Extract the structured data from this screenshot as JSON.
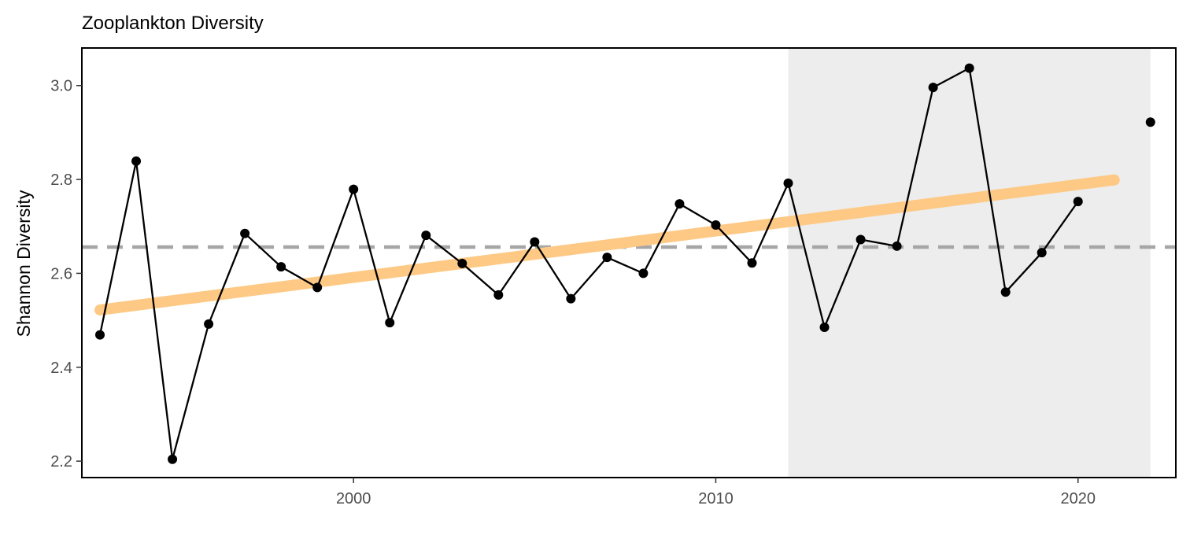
{
  "chart_data": {
    "type": "line",
    "title": "Zooplankton Diversity",
    "xlabel": "",
    "ylabel": "Shannon Diversity",
    "xlim": [
      1992.5,
      2022.7
    ],
    "ylim": [
      2.165,
      3.08
    ],
    "x_ticks": [
      2000,
      2010,
      2020
    ],
    "x_tick_labels": [
      "2000",
      "2010",
      "2020"
    ],
    "y_ticks": [
      2.2,
      2.4,
      2.6,
      2.8,
      3.0
    ],
    "y_tick_labels": [
      "2.2",
      "2.4",
      "2.6",
      "2.8",
      "3.0"
    ],
    "grid": false,
    "legend": "none",
    "shaded_period": {
      "x_start": 2012,
      "x_end": 2022,
      "color": "#ededed"
    },
    "mean_line": {
      "y": 2.656,
      "color": "#a6a6a6",
      "style": "dashed"
    },
    "trend_line": {
      "x": [
        1993,
        2021
      ],
      "y": [
        2.522,
        2.799
      ],
      "color": "#fdc985"
    },
    "series": [
      {
        "color": "#000000",
        "points": [
          {
            "x": 1993,
            "y": 2.469
          },
          {
            "x": 1994,
            "y": 2.839
          },
          {
            "x": 1995,
            "y": 2.204
          },
          {
            "x": 1996,
            "y": 2.492
          },
          {
            "x": 1997,
            "y": 2.685
          },
          {
            "x": 1998,
            "y": 2.614
          },
          {
            "x": 1999,
            "y": 2.57
          },
          {
            "x": 2000,
            "y": 2.779
          },
          {
            "x": 2001,
            "y": 2.495
          },
          {
            "x": 2002,
            "y": 2.681
          },
          {
            "x": 2003,
            "y": 2.621
          },
          {
            "x": 2004,
            "y": 2.554
          },
          {
            "x": 2005,
            "y": 2.667
          },
          {
            "x": 2006,
            "y": 2.546
          },
          {
            "x": 2007,
            "y": 2.634
          },
          {
            "x": 2008,
            "y": 2.6
          },
          {
            "x": 2009,
            "y": 2.748
          },
          {
            "x": 2010,
            "y": 2.703
          },
          {
            "x": 2011,
            "y": 2.622
          },
          {
            "x": 2012,
            "y": 2.792
          },
          {
            "x": 2013,
            "y": 2.485
          },
          {
            "x": 2014,
            "y": 2.672
          },
          {
            "x": 2015,
            "y": 2.658
          },
          {
            "x": 2016,
            "y": 2.996
          },
          {
            "x": 2017,
            "y": 3.037
          },
          {
            "x": 2018,
            "y": 2.56
          },
          {
            "x": 2019,
            "y": 2.644
          },
          {
            "x": 2020,
            "y": 2.753
          },
          {
            "x": 2022,
            "y": 2.922
          }
        ],
        "line_segments": [
          [
            0,
            27
          ]
        ]
      }
    ]
  }
}
